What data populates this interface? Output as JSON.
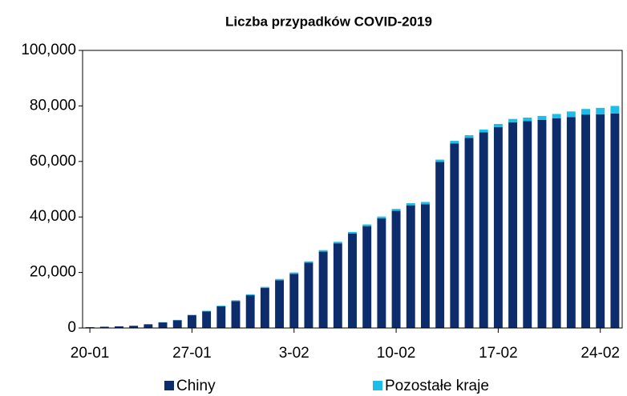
{
  "chart_data": {
    "type": "stacked_bar",
    "title": "Liczba przypadków COVID-2019",
    "categories": [
      "20-01",
      null,
      null,
      null,
      null,
      null,
      null,
      "27-01",
      null,
      null,
      null,
      null,
      null,
      null,
      "3-02",
      null,
      null,
      null,
      null,
      null,
      null,
      "10-02",
      null,
      null,
      null,
      null,
      null,
      null,
      "17-02",
      null,
      null,
      null,
      null,
      null,
      null,
      "24-02",
      null
    ],
    "series": [
      {
        "name": "Chiny",
        "color": "#0c2c6c",
        "values": [
          300,
          450,
          600,
          800,
          1300,
          2000,
          2800,
          4600,
          6000,
          7800,
          9700,
          11800,
          14400,
          17200,
          19500,
          23500,
          27500,
          30500,
          34000,
          36700,
          39500,
          42200,
          44200,
          44600,
          59800,
          66500,
          68500,
          70500,
          72400,
          74100,
          74500,
          75000,
          75500,
          76000,
          76900,
          77000,
          77300
        ]
      },
      {
        "name": "Pozostałe kraje",
        "color": "#1cbde8",
        "values": [
          10,
          20,
          30,
          50,
          80,
          100,
          120,
          150,
          200,
          250,
          300,
          350,
          400,
          450,
          500,
          500,
          550,
          550,
          600,
          600,
          650,
          700,
          750,
          800,
          850,
          900,
          950,
          1000,
          1100,
          1200,
          1300,
          1400,
          1600,
          2000,
          2000,
          2300,
          2700
        ]
      }
    ],
    "ylim": [
      0,
      100000
    ],
    "yticks": [
      0,
      {
        "value": 20000,
        "label": "20,000"
      },
      {
        "value": 40000,
        "label": "40,000"
      },
      {
        "value": 60000,
        "label": "60,000"
      },
      {
        "value": 80000,
        "label": "80,000"
      },
      {
        "value": 100000,
        "label": "100,000"
      }
    ],
    "legend": "bottom"
  }
}
